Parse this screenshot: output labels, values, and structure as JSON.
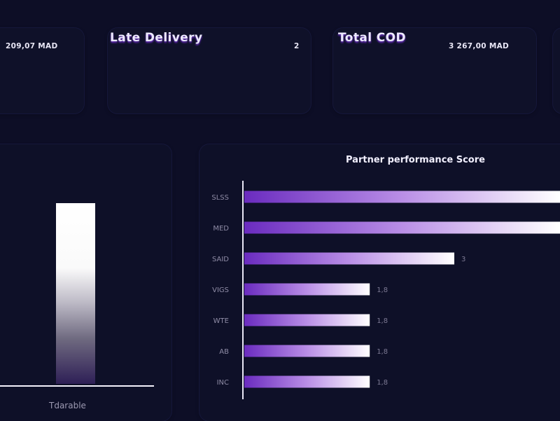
{
  "kpis": [
    {
      "title": "",
      "value": "209,07 MAD"
    },
    {
      "title": "Late Delivery",
      "value": "2"
    },
    {
      "title": "Total COD",
      "value": "3 267,00 MAD"
    }
  ],
  "colors": {
    "background": "#0d0e26",
    "bar_start": "#6a2bbf",
    "bar_end": "#ffffff",
    "text": "#e8e6f5",
    "muted": "#9c99b1"
  },
  "chart_data": [
    {
      "type": "bar",
      "orientation": "vertical",
      "categories": [
        "Tdarable"
      ],
      "values": [
        1
      ],
      "title": "",
      "xlabel": "",
      "ylabel": ""
    },
    {
      "type": "bar",
      "orientation": "horizontal",
      "title": "Partner performance Score",
      "categories": [
        "SLSS",
        "MED",
        "SAID",
        "VIGS",
        "WTE",
        "AB",
        "INC"
      ],
      "values": [
        4.5,
        4.5,
        3,
        1.8,
        1.8,
        1.8,
        1.8
      ],
      "data_labels": [
        "",
        "",
        "3",
        "1,8",
        "1,8",
        "1,8",
        "1,8"
      ],
      "xlim": [
        0,
        4.5
      ]
    }
  ]
}
